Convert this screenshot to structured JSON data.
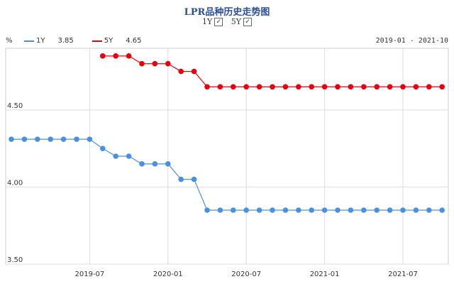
{
  "header": {
    "title": "LPR品种历史走势图",
    "toggles": [
      {
        "label": "1Y",
        "checked": true
      },
      {
        "label": "5Y",
        "checked": true
      }
    ]
  },
  "unit_label": "%",
  "legend": [
    {
      "name": "1Y",
      "value": "3.85",
      "color": "#4a90e2"
    },
    {
      "name": "5Y",
      "value": "4.65",
      "color": "#e8000b"
    }
  ],
  "date_range": "2019-01 - 2021-10",
  "chart_data": {
    "type": "line",
    "title": "LPR品种历史走势图",
    "xlabel": "",
    "ylabel": "%",
    "ylim": [
      3.5,
      4.9
    ],
    "y_ticks": [
      "3.50",
      "4.00",
      "4.50"
    ],
    "x_ticks": [
      "2019-07",
      "2020-01",
      "2020-07",
      "2021-01",
      "2021-07"
    ],
    "grid": true,
    "legend_position": "top-left",
    "x": [
      "2019-01",
      "2019-02",
      "2019-03",
      "2019-04",
      "2019-05",
      "2019-06",
      "2019-07",
      "2019-08",
      "2019-09",
      "2019-10",
      "2019-11",
      "2019-12",
      "2020-01",
      "2020-02",
      "2020-03",
      "2020-04",
      "2020-05",
      "2020-06",
      "2020-07",
      "2020-08",
      "2020-09",
      "2020-10",
      "2020-11",
      "2020-12",
      "2021-01",
      "2021-02",
      "2021-03",
      "2021-04",
      "2021-05",
      "2021-06",
      "2021-07",
      "2021-08",
      "2021-09",
      "2021-10"
    ],
    "series": [
      {
        "name": "1Y",
        "color": "#4a90e2",
        "values": [
          4.31,
          4.31,
          4.31,
          4.31,
          4.31,
          4.31,
          4.31,
          4.25,
          4.2,
          4.2,
          4.15,
          4.15,
          4.15,
          4.05,
          4.05,
          3.85,
          3.85,
          3.85,
          3.85,
          3.85,
          3.85,
          3.85,
          3.85,
          3.85,
          3.85,
          3.85,
          3.85,
          3.85,
          3.85,
          3.85,
          3.85,
          3.85,
          3.85,
          3.85
        ]
      },
      {
        "name": "5Y",
        "color": "#e8000b",
        "values": [
          null,
          null,
          null,
          null,
          null,
          null,
          null,
          4.85,
          4.85,
          4.85,
          4.8,
          4.8,
          4.8,
          4.75,
          4.75,
          4.65,
          4.65,
          4.65,
          4.65,
          4.65,
          4.65,
          4.65,
          4.65,
          4.65,
          4.65,
          4.65,
          4.65,
          4.65,
          4.65,
          4.65,
          4.65,
          4.65,
          4.65,
          4.65
        ]
      }
    ]
  }
}
